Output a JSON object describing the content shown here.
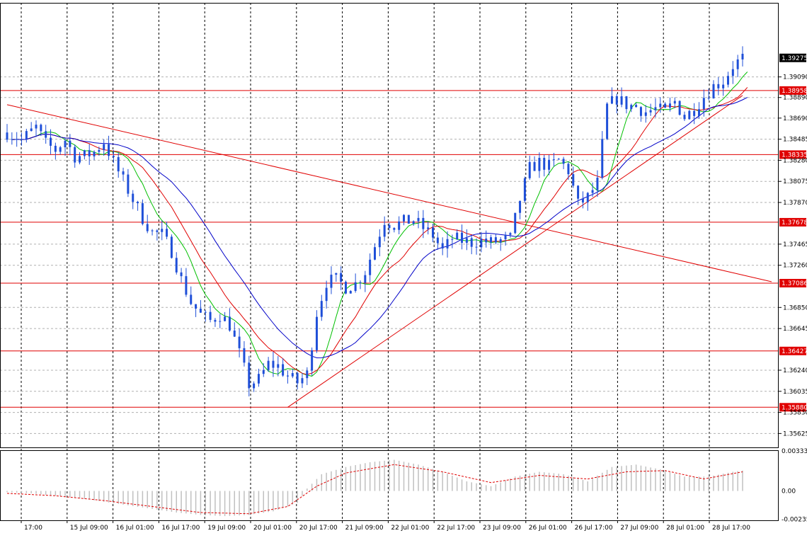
{
  "chart_data": [
    {
      "type": "candlestick",
      "instrument_quote_labels": [
        {
          "value": "1.39275",
          "color": "#000000"
        }
      ],
      "ylim": [
        1.3549,
        1.3981
      ],
      "grid": true,
      "x_ticks": [
        "17:00",
        "15 Jul 09:00",
        "16 Jul 01:00",
        "16 Jul 17:00",
        "19 Jul 09:00",
        "20 Jul 01:00",
        "20 Jul 17:00",
        "21 Jul 09:00",
        "22 Jul 01:00",
        "22 Jul 17:00",
        "23 Jul 09:00",
        "26 Jul 01:00",
        "26 Jul 17:00",
        "27 Jul 09:00",
        "28 Jul 01:00",
        "28 Jul 17:00"
      ],
      "y_ticks": [
        "1.39090",
        "1.38890",
        "1.38690",
        "1.38485",
        "1.38280",
        "1.38075",
        "1.37870",
        "1.37465",
        "1.37260",
        "1.36850",
        "1.36645",
        "1.36240",
        "1.36035",
        "1.35830",
        "1.35625"
      ],
      "horizontal_levels": [
        {
          "label": "1.38958",
          "value": 1.38958,
          "color": "#e00000"
        },
        {
          "label": "1.38335",
          "value": 1.38335,
          "color": "#e00000"
        },
        {
          "label": "1.37678",
          "value": 1.37678,
          "color": "#e00000"
        },
        {
          "label": "1.37086",
          "value": 1.37086,
          "color": "#e00000"
        },
        {
          "label": "1.36427",
          "value": 1.36427,
          "color": "#e00000"
        },
        {
          "label": "1.35880",
          "value": 1.3588,
          "color": "#e00000"
        }
      ],
      "trend_lines": [
        {
          "name": "descending",
          "color": "#e00000",
          "points": [
            [
              0,
              1.3882
            ],
            [
              158,
              1.371
            ]
          ]
        },
        {
          "name": "ascending",
          "color": "#e00000",
          "points": [
            [
              58,
              1.3588
            ],
            [
              152,
              1.3891
            ]
          ]
        }
      ],
      "candle_color": "#1f4fd8",
      "moving_averages": [
        {
          "color": "#00c000",
          "period": "fast"
        },
        {
          "color": "#e00000",
          "period": "medium"
        },
        {
          "color": "#0000c8",
          "period": "slow"
        }
      ],
      "close_path": [
        [
          0,
          1.3855
        ],
        [
          3,
          1.3848
        ],
        [
          6,
          1.386
        ],
        [
          8,
          1.3844
        ],
        [
          10,
          1.3838
        ],
        [
          12,
          1.3848
        ],
        [
          14,
          1.3832
        ],
        [
          16,
          1.3832
        ],
        [
          18,
          1.3836
        ],
        [
          20,
          1.3846
        ],
        [
          22,
          1.3826
        ],
        [
          24,
          1.3808
        ],
        [
          26,
          1.379
        ],
        [
          28,
          1.3772
        ],
        [
          30,
          1.3758
        ],
        [
          32,
          1.3756
        ],
        [
          34,
          1.374
        ],
        [
          36,
          1.3712
        ],
        [
          38,
          1.369
        ],
        [
          40,
          1.3678
        ],
        [
          42,
          1.3672
        ],
        [
          44,
          1.3678
        ],
        [
          46,
          1.3668
        ],
        [
          48,
          1.364
        ],
        [
          50,
          1.361
        ],
        [
          52,
          1.3615
        ],
        [
          54,
          1.363
        ],
        [
          56,
          1.3628
        ],
        [
          58,
          1.3618
        ],
        [
          60,
          1.3612
        ],
        [
          62,
          1.362
        ],
        [
          64,
          1.368
        ],
        [
          66,
          1.371
        ],
        [
          68,
          1.3712
        ],
        [
          70,
          1.3705
        ],
        [
          72,
          1.3708
        ],
        [
          74,
          1.372
        ],
        [
          76,
          1.3745
        ],
        [
          78,
          1.377
        ],
        [
          80,
          1.3765
        ],
        [
          82,
          1.3768
        ],
        [
          84,
          1.377
        ],
        [
          86,
          1.3762
        ],
        [
          88,
          1.3755
        ],
        [
          90,
          1.374
        ],
        [
          92,
          1.3752
        ],
        [
          94,
          1.375
        ],
        [
          96,
          1.3748
        ],
        [
          98,
          1.375
        ],
        [
          100,
          1.3748
        ],
        [
          102,
          1.375
        ],
        [
          104,
          1.3752
        ],
        [
          106,
          1.379
        ],
        [
          108,
          1.382
        ],
        [
          110,
          1.3826
        ],
        [
          112,
          1.3822
        ],
        [
          114,
          1.3828
        ],
        [
          116,
          1.3818
        ],
        [
          118,
          1.3785
        ],
        [
          120,
          1.3792
        ],
        [
          122,
          1.3806
        ],
        [
          124,
          1.388
        ],
        [
          126,
          1.3888
        ],
        [
          128,
          1.3882
        ],
        [
          130,
          1.388
        ],
        [
          132,
          1.3875
        ],
        [
          134,
          1.3878
        ],
        [
          136,
          1.3875
        ],
        [
          138,
          1.3885
        ],
        [
          140,
          1.387
        ],
        [
          142,
          1.3878
        ],
        [
          144,
          1.389
        ],
        [
          146,
          1.39
        ],
        [
          148,
          1.3905
        ],
        [
          150,
          1.392
        ],
        [
          152,
          1.3927
        ]
      ],
      "series_names": [
        "",
        "",
        ""
      ]
    },
    {
      "type": "macd",
      "y_ticks": [
        "0.003333",
        "0.00",
        "-0.002354"
      ],
      "ylim": [
        -0.00245,
        0.0034
      ],
      "histogram_color": "#c0c0c0",
      "signal_color": "#e00000",
      "histogram": [
        [
          0,
          -0.0001
        ],
        [
          5,
          -0.0002
        ],
        [
          10,
          -0.0004
        ],
        [
          15,
          -0.0006
        ],
        [
          20,
          -0.0009
        ],
        [
          25,
          -0.0012
        ],
        [
          30,
          -0.0015
        ],
        [
          35,
          -0.0018
        ],
        [
          40,
          -0.002
        ],
        [
          45,
          -0.0021
        ],
        [
          50,
          -0.002
        ],
        [
          55,
          -0.0017
        ],
        [
          60,
          -0.001
        ],
        [
          62,
          0.0002
        ],
        [
          65,
          0.0014
        ],
        [
          70,
          0.002
        ],
        [
          75,
          0.0024
        ],
        [
          80,
          0.0026
        ],
        [
          85,
          0.0022
        ],
        [
          90,
          0.0016
        ],
        [
          95,
          0.0008
        ],
        [
          100,
          0.0004
        ],
        [
          105,
          0.0012
        ],
        [
          110,
          0.0016
        ],
        [
          115,
          0.0014
        ],
        [
          120,
          0.0008
        ],
        [
          125,
          0.002
        ],
        [
          130,
          0.0022
        ],
        [
          135,
          0.0018
        ],
        [
          140,
          0.0012
        ],
        [
          145,
          0.0012
        ],
        [
          150,
          0.0016
        ],
        [
          152,
          0.0017
        ]
      ],
      "signal": [
        [
          0,
          -0.0002
        ],
        [
          10,
          -0.0004
        ],
        [
          20,
          -0.0008
        ],
        [
          30,
          -0.0013
        ],
        [
          40,
          -0.0018
        ],
        [
          50,
          -0.0019
        ],
        [
          58,
          -0.0013
        ],
        [
          64,
          0.0004
        ],
        [
          70,
          0.0015
        ],
        [
          80,
          0.0022
        ],
        [
          90,
          0.0016
        ],
        [
          100,
          0.0007
        ],
        [
          110,
          0.0013
        ],
        [
          120,
          0.001
        ],
        [
          128,
          0.0016
        ],
        [
          136,
          0.0017
        ],
        [
          144,
          0.001
        ],
        [
          152,
          0.0016
        ]
      ]
    }
  ]
}
